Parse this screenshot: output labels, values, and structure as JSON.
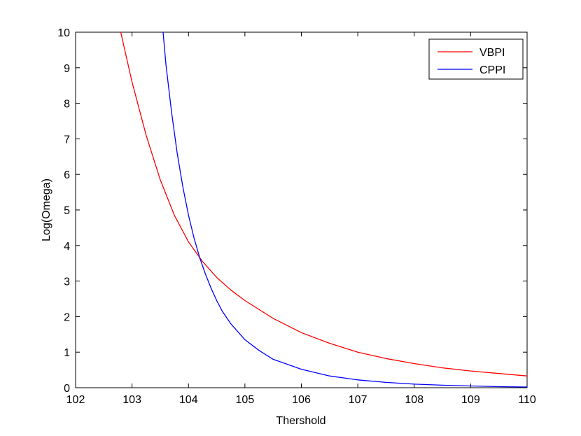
{
  "chart_data": {
    "type": "line",
    "xlabel": "Thershold",
    "ylabel": "Log(Omega)",
    "xlim": [
      102,
      110
    ],
    "ylim": [
      0,
      10
    ],
    "xticks": [
      102,
      103,
      104,
      105,
      106,
      107,
      108,
      109,
      110
    ],
    "yticks": [
      0,
      1,
      2,
      3,
      4,
      5,
      6,
      7,
      8,
      9,
      10
    ],
    "grid": false,
    "legend_position": "top-right",
    "series": [
      {
        "name": "VBPI",
        "color": "#ff0000",
        "x": [
          102.8,
          103.0,
          103.25,
          103.5,
          103.75,
          104.0,
          104.25,
          104.5,
          104.75,
          105.0,
          105.5,
          106.0,
          106.5,
          107.0,
          107.5,
          108.0,
          108.5,
          109.0,
          109.5,
          110.0
        ],
        "y": [
          10.0,
          8.6,
          7.1,
          5.85,
          4.85,
          4.1,
          3.55,
          3.1,
          2.75,
          2.45,
          1.95,
          1.55,
          1.25,
          1.0,
          0.82,
          0.68,
          0.56,
          0.47,
          0.4,
          0.33
        ]
      },
      {
        "name": "CPPI",
        "color": "#0000ff",
        "x": [
          103.55,
          103.6,
          103.7,
          103.8,
          103.9,
          104.0,
          104.1,
          104.2,
          104.3,
          104.4,
          104.5,
          104.6,
          104.75,
          105.0,
          105.25,
          105.5,
          106.0,
          106.5,
          107.0,
          107.5,
          108.0,
          108.5,
          109.0,
          109.5,
          110.0
        ],
        "y": [
          10.0,
          9.1,
          7.75,
          6.6,
          5.65,
          4.85,
          4.2,
          3.65,
          3.2,
          2.8,
          2.45,
          2.15,
          1.8,
          1.35,
          1.05,
          0.8,
          0.52,
          0.33,
          0.22,
          0.15,
          0.1,
          0.07,
          0.05,
          0.03,
          0.02
        ]
      }
    ]
  }
}
